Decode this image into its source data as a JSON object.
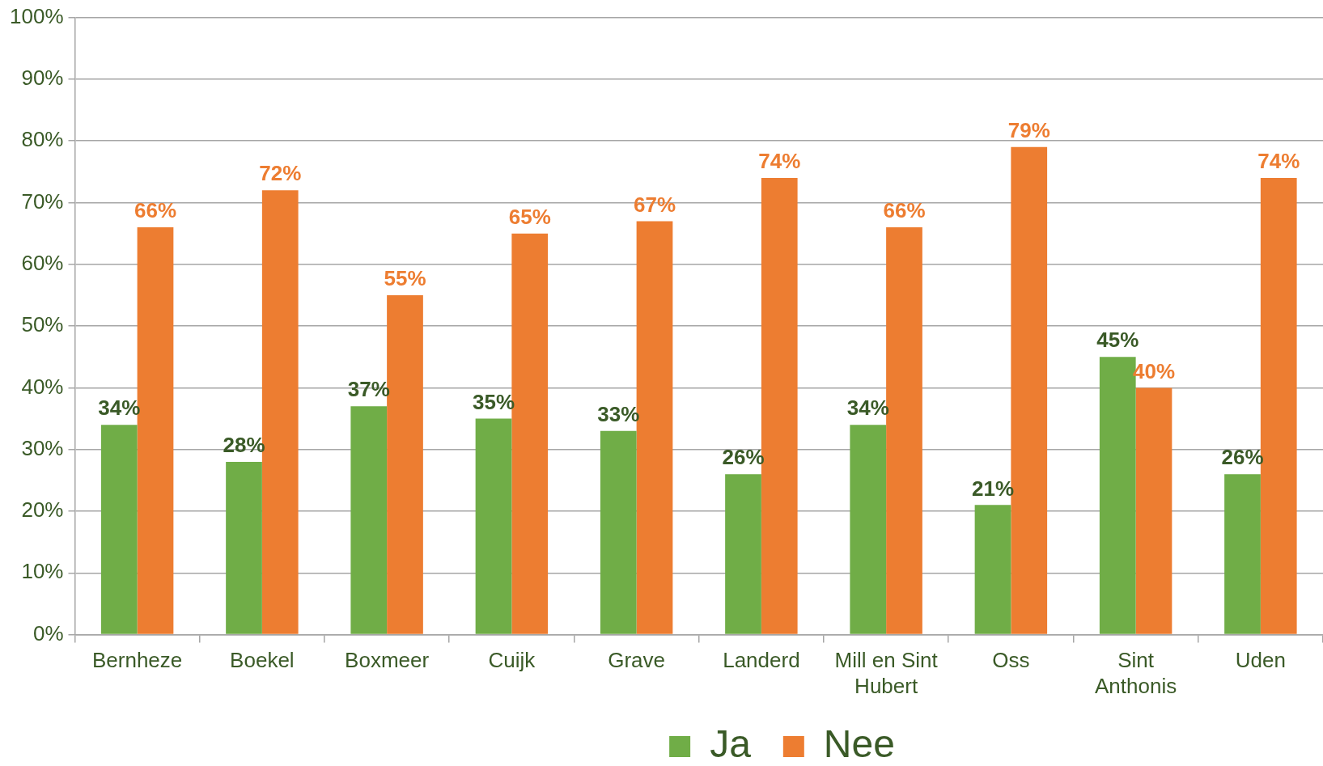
{
  "chart_data": {
    "type": "bar",
    "categories": [
      "Bernheze",
      "Boekel",
      "Boxmeer",
      "Cuijk",
      "Grave",
      "Landerd",
      "Mill en Sint Hubert",
      "Oss",
      "Sint Anthonis",
      "Uden"
    ],
    "series": [
      {
        "name": "Ja",
        "color": "#70ad47",
        "values": [
          34,
          28,
          37,
          35,
          33,
          26,
          34,
          21,
          45,
          26
        ],
        "value_labels": [
          "34%",
          "28%",
          "37%",
          "35%",
          "33%",
          "26%",
          "34%",
          "21%",
          "45%",
          "26%"
        ]
      },
      {
        "name": "Nee",
        "color": "#ed7d31",
        "values": [
          66,
          72,
          55,
          65,
          67,
          74,
          66,
          79,
          40,
          74
        ],
        "value_labels": [
          "66%",
          "72%",
          "55%",
          "65%",
          "67%",
          "74%",
          "66%",
          "79%",
          "40%",
          "74%"
        ]
      }
    ],
    "ylim": [
      0,
      100
    ],
    "yticks": [
      {
        "value": 0,
        "label": "0%"
      },
      {
        "value": 10,
        "label": "10%"
      },
      {
        "value": 20,
        "label": "20%"
      },
      {
        "value": 30,
        "label": "30%"
      },
      {
        "value": 40,
        "label": "40%"
      },
      {
        "value": 50,
        "label": "50%"
      },
      {
        "value": 60,
        "label": "60%"
      },
      {
        "value": 70,
        "label": "70%"
      },
      {
        "value": 80,
        "label": "80%"
      },
      {
        "value": 90,
        "label": "90%"
      },
      {
        "value": 100,
        "label": "100%"
      }
    ],
    "grid": "y",
    "legend": "bottom"
  }
}
